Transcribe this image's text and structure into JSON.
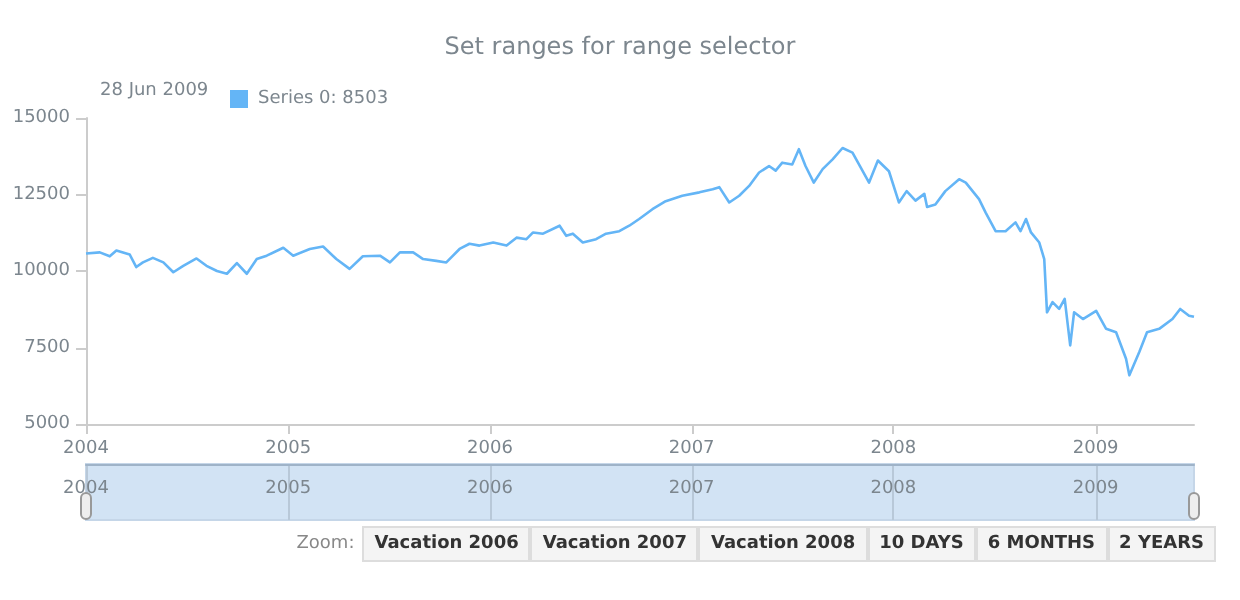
{
  "chart_data": {
    "type": "line",
    "title": "Set ranges for range selector",
    "annotations": [
      "28 Jun 2009",
      "Zoom:",
      "Vacation 2006",
      "Vacation 2007",
      "Vacation 2008",
      "10 DAYS",
      "6 MONTHS",
      "2 YEARS"
    ],
    "x": [
      "2004-01-01",
      "2004-01-26",
      "2004-02-13",
      "2004-02-25",
      "2004-03-20",
      "2004-04-01",
      "2004-04-13",
      "2004-05-01",
      "2004-05-20",
      "2004-06-07",
      "2004-06-25",
      "2004-07-19",
      "2004-08-06",
      "2004-08-25",
      "2004-09-12",
      "2004-09-30",
      "2004-10-18",
      "2004-11-05",
      "2004-11-23",
      "2004-12-23",
      "2005-01-10",
      "2005-02-09",
      "2005-03-05",
      "2005-03-29",
      "2005-04-22",
      "2005-05-16",
      "2005-06-16",
      "2005-07-04",
      "2005-07-22",
      "2005-08-15",
      "2005-09-02",
      "2005-09-26",
      "2005-10-14",
      "2005-11-07",
      "2005-11-25",
      "2005-12-13",
      "2006-01-07",
      "2006-01-31",
      "2006-02-18",
      "2006-03-08",
      "2006-03-20",
      "2006-04-07",
      "2006-05-07",
      "2006-05-19",
      "2006-05-31",
      "2006-06-18",
      "2006-07-12",
      "2006-07-30",
      "2006-08-23",
      "2006-09-10",
      "2006-09-28",
      "2006-10-22",
      "2006-11-15",
      "2006-12-15",
      "2007-01-15",
      "2007-02-08",
      "2007-02-20",
      "2007-03-10",
      "2007-03-28",
      "2007-04-15",
      "2007-05-03",
      "2007-05-21",
      "2007-06-02",
      "2007-06-14",
      "2007-07-02",
      "2007-07-14",
      "2007-07-26",
      "2007-08-10",
      "2007-08-26",
      "2007-09-13",
      "2007-10-01",
      "2007-10-19",
      "2007-11-18",
      "2007-12-04",
      "2007-12-24",
      "2008-01-11",
      "2008-01-25",
      "2008-02-10",
      "2008-02-26",
      "2008-03-02",
      "2008-03-17",
      "2008-04-04",
      "2008-04-29",
      "2008-05-11",
      "2008-06-04",
      "2008-06-16",
      "2008-07-04",
      "2008-07-22",
      "2008-08-09",
      "2008-08-18",
      "2008-08-28",
      "2008-09-06",
      "2008-09-21",
      "2008-09-30",
      "2008-10-05",
      "2008-10-15",
      "2008-10-27",
      "2008-11-06",
      "2008-11-16",
      "2008-11-23",
      "2008-12-09",
      "2009-01-02",
      "2009-01-20",
      "2009-02-07",
      "2009-02-25",
      "2009-03-03",
      "2009-03-21",
      "2009-04-04",
      "2009-04-26",
      "2009-05-20",
      "2009-06-03",
      "2009-06-19",
      "2009-06-28"
    ],
    "series": [
      {
        "name": "Series 0: 8503",
        "color": "#64b5f6",
        "values": [
          10570,
          10610,
          10480,
          10670,
          10540,
          10130,
          10280,
          10430,
          10280,
          9960,
          10170,
          10410,
          10170,
          10000,
          9910,
          10260,
          9910,
          10390,
          10500,
          10760,
          10500,
          10720,
          10800,
          10390,
          10070,
          10480,
          10500,
          10280,
          10610,
          10610,
          10390,
          10330,
          10280,
          10720,
          10890,
          10830,
          10930,
          10830,
          11090,
          11040,
          11260,
          11220,
          11480,
          11150,
          11220,
          10930,
          11040,
          11220,
          11300,
          11480,
          11700,
          12020,
          12280,
          12460,
          12570,
          12670,
          12740,
          12240,
          12460,
          12780,
          13220,
          13430,
          13280,
          13540,
          13480,
          13980,
          13430,
          12890,
          13330,
          13650,
          14020,
          13870,
          12890,
          13610,
          13260,
          12240,
          12610,
          12300,
          12520,
          12090,
          12170,
          12610,
          13000,
          12890,
          12350,
          11910,
          11300,
          11300,
          11590,
          11300,
          11700,
          11260,
          10930,
          10390,
          8650,
          8980,
          8760,
          9090,
          7570,
          8650,
          8430,
          8700,
          8110,
          8000,
          7130,
          6590,
          7350,
          8000,
          8110,
          8430,
          8760,
          8540,
          8503
        ]
      }
    ],
    "xlim": [
      "2004-01-01",
      "2009-06-28"
    ],
    "xticks": [
      "2004",
      "2005",
      "2006",
      "2007",
      "2008",
      "2009"
    ],
    "x2lim": [
      "2004-01-01",
      "2009-06-28"
    ],
    "x2ticks": [
      "2004",
      "2005",
      "2006",
      "2007",
      "2008",
      "2009"
    ],
    "ylim": [
      5000,
      15000
    ],
    "yticks": [
      5000,
      7500,
      10000,
      12500,
      15000
    ],
    "legend": "top left"
  }
}
